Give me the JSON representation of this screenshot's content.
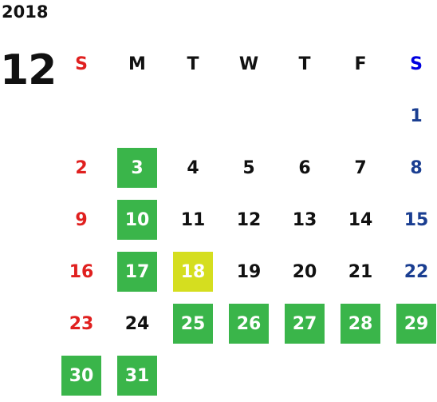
{
  "year": "2018",
  "month": "12",
  "weekdays": [
    "S",
    "M",
    "T",
    "W",
    "T",
    "F",
    "S"
  ],
  "weeks": [
    [
      null,
      null,
      null,
      null,
      null,
      null,
      {
        "day": "1"
      }
    ],
    [
      {
        "day": "2"
      },
      {
        "day": "3",
        "fill": "#3ab54a"
      },
      {
        "day": "4"
      },
      {
        "day": "5"
      },
      {
        "day": "6"
      },
      {
        "day": "7"
      },
      {
        "day": "8"
      }
    ],
    [
      {
        "day": "9"
      },
      {
        "day": "10",
        "fill": "#3ab54a"
      },
      {
        "day": "11"
      },
      {
        "day": "12"
      },
      {
        "day": "13"
      },
      {
        "day": "14"
      },
      {
        "day": "15"
      }
    ],
    [
      {
        "day": "16"
      },
      {
        "day": "17",
        "fill": "#3ab54a"
      },
      {
        "day": "18",
        "fill": "#d5de1f"
      },
      {
        "day": "19"
      },
      {
        "day": "20"
      },
      {
        "day": "21"
      },
      {
        "day": "22"
      }
    ],
    [
      {
        "day": "23"
      },
      {
        "day": "24"
      },
      {
        "day": "25",
        "fill": "#3ab54a"
      },
      {
        "day": "26",
        "fill": "#3ab54a"
      },
      {
        "day": "27",
        "fill": "#3ab54a"
      },
      {
        "day": "28",
        "fill": "#3ab54a"
      },
      {
        "day": "29",
        "fill": "#3ab54a"
      }
    ],
    [
      {
        "day": "30",
        "fill": "#3ab54a"
      },
      {
        "day": "31",
        "fill": "#3ab54a"
      },
      null,
      null,
      null,
      null,
      null
    ]
  ]
}
